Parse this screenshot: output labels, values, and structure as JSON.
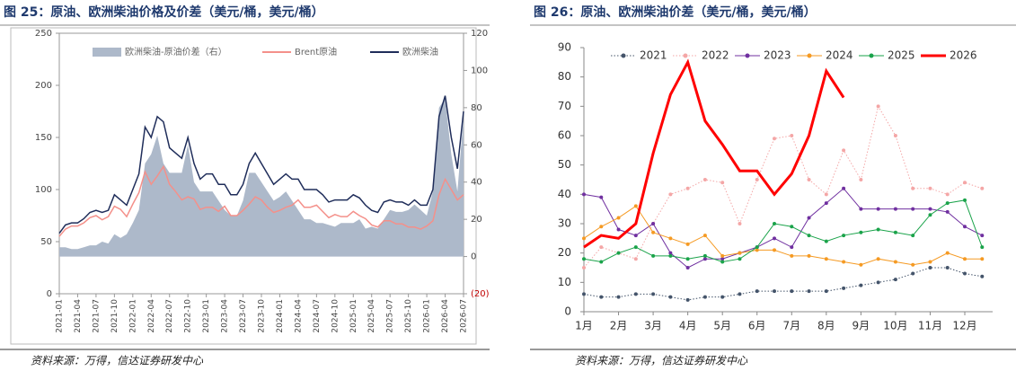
{
  "chart_data": [
    {
      "type": "line",
      "title": "图 25：原油、欧洲柴油价格及价差（美元/桶，美元/桶）",
      "source": "资料来源：万得，信达证券研发中心",
      "x": [
        "2021-01",
        "2021-02",
        "2021-03",
        "2021-04",
        "2021-05",
        "2021-06",
        "2021-07",
        "2021-08",
        "2021-09",
        "2021-10",
        "2021-11",
        "2021-12",
        "2022-01",
        "2022-02",
        "2022-03",
        "2022-04",
        "2022-05",
        "2022-06",
        "2022-07",
        "2022-08",
        "2022-09",
        "2022-10",
        "2022-11",
        "2022-12",
        "2023-01",
        "2023-02",
        "2023-03",
        "2023-04",
        "2023-05",
        "2023-06",
        "2023-07",
        "2023-08",
        "2023-09",
        "2023-10",
        "2023-11",
        "2023-12",
        "2024-01",
        "2024-02",
        "2024-03",
        "2024-04",
        "2024-05",
        "2024-06",
        "2024-07",
        "2024-08",
        "2024-09",
        "2024-10",
        "2024-11",
        "2024-12",
        "2025-01",
        "2025-02",
        "2025-03",
        "2025-04",
        "2025-05",
        "2025-06",
        "2025-07",
        "2025-08",
        "2025-09",
        "2025-10",
        "2025-11",
        "2025-12",
        "2026-01",
        "2026-02",
        "2026-03",
        "2026-04",
        "2026-05",
        "2026-06",
        "2026-07"
      ],
      "xticks": [
        "2021-01",
        "2021-04",
        "2021-07",
        "2021-10",
        "2022-01",
        "2022-04",
        "2022-07",
        "2022-10",
        "2023-01",
        "2023-04",
        "2023-07",
        "2023-10",
        "2024-01",
        "2024-04",
        "2024-07",
        "2024-10",
        "2025-01",
        "2025-04",
        "2025-07",
        "2025-10",
        "2026-01",
        "2026-04",
        "2026-07"
      ],
      "ylim": [
        0,
        250
      ],
      "yticks": [
        0,
        50,
        100,
        150,
        200,
        250
      ],
      "y2lim": [
        -20,
        120
      ],
      "y2ticks": [
        {
          "value": -20,
          "label": "(20)"
        },
        0,
        20,
        40,
        60,
        80,
        100,
        120
      ],
      "series": [
        {
          "name": "欧洲柴油-原油价差（右）",
          "type": "area",
          "axis": "y2",
          "color": "#adb9ca",
          "values": [
            5,
            5,
            4,
            4,
            5,
            6,
            6,
            8,
            7,
            12,
            10,
            12,
            18,
            25,
            50,
            55,
            65,
            50,
            45,
            45,
            45,
            60,
            40,
            35,
            35,
            35,
            30,
            25,
            22,
            22,
            30,
            45,
            45,
            40,
            35,
            30,
            32,
            35,
            30,
            25,
            20,
            20,
            18,
            18,
            17,
            16,
            18,
            18,
            18,
            20,
            15,
            16,
            15,
            20,
            25,
            24,
            24,
            25,
            28,
            25,
            22,
            35,
            80,
            85,
            55,
            35,
            75
          ]
        },
        {
          "name": "Brent原油",
          "type": "line",
          "color": "#f4908a",
          "values": [
            55,
            62,
            65,
            65,
            68,
            73,
            75,
            71,
            74,
            84,
            81,
            74,
            86,
            97,
            117,
            105,
            113,
            122,
            105,
            98,
            90,
            93,
            91,
            81,
            83,
            83,
            79,
            84,
            75,
            75,
            80,
            86,
            93,
            90,
            83,
            78,
            80,
            83,
            85,
            90,
            83,
            83,
            85,
            79,
            73,
            76,
            74,
            74,
            79,
            75,
            72,
            66,
            64,
            70,
            70,
            67,
            67,
            64,
            64,
            62,
            65,
            70,
            95,
            110,
            100,
            90,
            95
          ]
        },
        {
          "name": "欧洲柴油",
          "type": "line",
          "color": "#1f2d5a",
          "values": [
            58,
            66,
            68,
            68,
            72,
            78,
            80,
            78,
            80,
            95,
            90,
            85,
            100,
            115,
            160,
            150,
            170,
            165,
            140,
            135,
            130,
            150,
            125,
            110,
            115,
            115,
            105,
            105,
            95,
            95,
            105,
            125,
            135,
            125,
            115,
            105,
            110,
            115,
            110,
            110,
            100,
            100,
            100,
            95,
            88,
            90,
            90,
            90,
            95,
            92,
            85,
            80,
            78,
            88,
            90,
            88,
            88,
            85,
            90,
            85,
            85,
            100,
            170,
            190,
            150,
            120,
            175
          ]
        }
      ]
    },
    {
      "type": "line",
      "title": "图 26：原油、欧洲柴油价差（美元/桶，美元/桶）",
      "source": "资料来源：万得，信达证券研发中心",
      "categories": [
        "1月",
        null,
        "2月",
        null,
        "3月",
        null,
        "4月",
        null,
        "5月",
        null,
        "6月",
        null,
        "7月",
        null,
        "8月",
        null,
        "9月",
        null,
        "10月",
        null,
        "11月",
        null,
        "12月",
        null
      ],
      "ylim": [
        0,
        90
      ],
      "yticks": [
        0,
        10,
        20,
        30,
        40,
        50,
        60,
        70,
        80,
        90
      ],
      "series": [
        {
          "name": "2021",
          "color": "#44546a",
          "marker": true,
          "line_style": "dotted",
          "values": [
            6,
            5,
            5,
            6,
            6,
            5,
            4,
            5,
            5,
            6,
            7,
            7,
            7,
            7,
            7,
            8,
            9,
            10,
            11,
            13,
            15,
            15,
            13,
            12
          ]
        },
        {
          "name": "2022",
          "color": "#f4a6a6",
          "marker": true,
          "line_style": "dotted",
          "values": [
            15,
            22,
            20,
            18,
            30,
            40,
            42,
            45,
            44,
            30,
            45,
            59,
            60,
            45,
            40,
            55,
            45,
            70,
            60,
            42,
            42,
            40,
            44,
            42
          ]
        },
        {
          "name": "2023",
          "color": "#7030a0",
          "marker": true,
          "line_style": "solid",
          "values": [
            40,
            39,
            28,
            26,
            30,
            20,
            15,
            18,
            18,
            20,
            22,
            25,
            22,
            32,
            37,
            42,
            35,
            35,
            35,
            35,
            35,
            34,
            29,
            26
          ]
        },
        {
          "name": "2024",
          "color": "#f59a23",
          "marker": true,
          "line_style": "solid",
          "values": [
            25,
            29,
            32,
            36,
            27,
            25,
            23,
            26,
            19,
            20,
            21,
            21,
            19,
            19,
            18,
            17,
            16,
            18,
            17,
            16,
            17,
            20,
            18,
            18
          ]
        },
        {
          "name": "2025",
          "color": "#1aa34a",
          "marker": true,
          "line_style": "solid",
          "values": [
            18,
            17,
            20,
            22,
            19,
            19,
            18,
            19,
            17,
            18,
            22,
            30,
            29,
            26,
            24,
            26,
            27,
            28,
            27,
            26,
            33,
            37,
            38,
            22
          ]
        },
        {
          "name": "2026",
          "color": "#ff0000",
          "marker": false,
          "line_style": "solid",
          "values": [
            22,
            26,
            25,
            30,
            54,
            74,
            85,
            65,
            57,
            48,
            48,
            40,
            47,
            60,
            82,
            73,
            null,
            null,
            null,
            null,
            null,
            null,
            null,
            null
          ]
        }
      ]
    }
  ]
}
